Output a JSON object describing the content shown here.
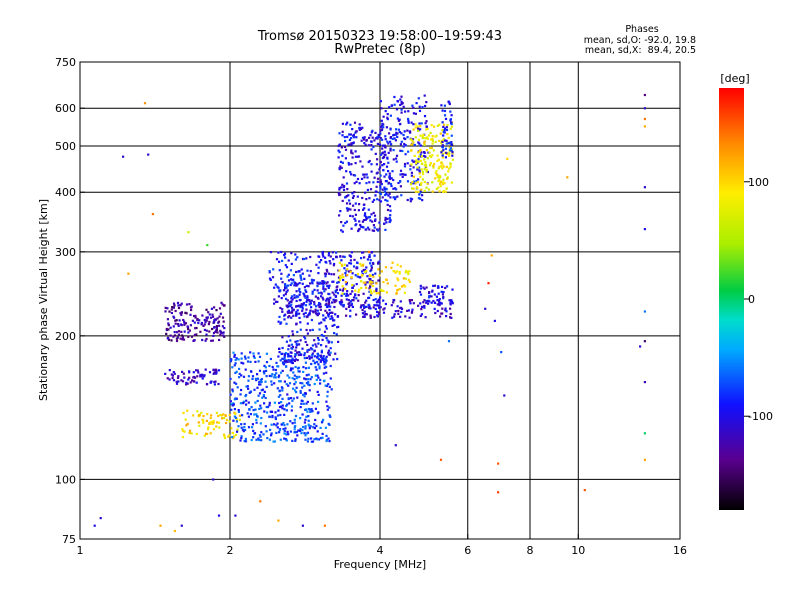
{
  "chart_data": {
    "type": "scatter",
    "title": "Tromsø 20150323 19:58:00–19:59:43",
    "subtitle": "RwPretec (8p)",
    "stats": {
      "heading": "Phases",
      "line_o": "mean, sd,O: -92.0, 19.8",
      "line_x": "mean, sd,X:  89.4, 20.5"
    },
    "xlabel": "Frequency [MHz]",
    "ylabel": "Stationary phase Virtual Height [km]",
    "x_scale": "log",
    "y_scale": "log",
    "xlim": [
      1,
      16
    ],
    "ylim": [
      75,
      750
    ],
    "x_ticks": [
      1,
      2,
      4,
      6,
      8,
      10,
      16
    ],
    "x_tick_labels": [
      "1",
      "2",
      "4",
      "6",
      "8",
      "10",
      "16"
    ],
    "y_ticks": [
      75,
      100,
      200,
      300,
      400,
      500,
      600,
      750
    ],
    "y_tick_labels": [
      "75",
      "100",
      "200",
      "300",
      "400",
      "500",
      "600",
      "750"
    ],
    "x_gridlines": [
      2,
      4,
      6,
      8,
      10
    ],
    "y_gridlines": [
      100,
      200,
      300,
      400,
      500,
      600
    ],
    "grid": true,
    "colorbar": {
      "label": "[deg]",
      "range": [
        -180,
        180
      ],
      "ticks": [
        100,
        0,
        -100
      ],
      "tick_labels": [
        "100",
        "0",
        "-100"
      ],
      "colormap": "rainbow"
    },
    "clusters": [
      {
        "x": [
          1.48,
          1.95
        ],
        "y": [
          195,
          235
        ],
        "phase": -130,
        "n": 170
      },
      {
        "x": [
          1.48,
          1.9
        ],
        "y": [
          158,
          170
        ],
        "phase": -115,
        "n": 70
      },
      {
        "x": [
          1.6,
          2.1
        ],
        "y": [
          122,
          140
        ],
        "phase": 95,
        "n": 80
      },
      {
        "x": [
          2.0,
          3.2
        ],
        "y": [
          120,
          185
        ],
        "phase": -75,
        "n": 520
      },
      {
        "x": [
          2.5,
          3.3
        ],
        "y": [
          175,
          260
        ],
        "phase": -95,
        "n": 260
      },
      {
        "x": [
          2.4,
          3.1
        ],
        "y": [
          230,
          300
        ],
        "phase": -90,
        "n": 120
      },
      {
        "x": [
          2.6,
          5.6
        ],
        "y": [
          218,
          238
        ],
        "phase": -110,
        "n": 180
      },
      {
        "x": [
          3.1,
          4.0
        ],
        "y": [
          230,
          300
        ],
        "phase": -100,
        "n": 180
      },
      {
        "x": [
          3.3,
          4.6
        ],
        "y": [
          245,
          285
        ],
        "phase": 95,
        "n": 100
      },
      {
        "x": [
          3.3,
          4.2
        ],
        "y": [
          330,
          560
        ],
        "phase": -100,
        "n": 300
      },
      {
        "x": [
          4.0,
          5.0
        ],
        "y": [
          380,
          640
        ],
        "phase": -95,
        "n": 220
      },
      {
        "x": [
          4.6,
          5.6
        ],
        "y": [
          400,
          560
        ],
        "phase": 85,
        "n": 190
      },
      {
        "x": [
          5.3,
          5.6
        ],
        "y": [
          470,
          620
        ],
        "phase": -90,
        "n": 50
      },
      {
        "x": [
          4.8,
          5.6
        ],
        "y": [
          232,
          255
        ],
        "phase": -100,
        "n": 50
      }
    ],
    "scattered_points": [
      {
        "x": 1.07,
        "y": 80,
        "phase": -100
      },
      {
        "x": 1.1,
        "y": 83,
        "phase": -110
      },
      {
        "x": 1.22,
        "y": 475,
        "phase": -110
      },
      {
        "x": 1.25,
        "y": 270,
        "phase": 120
      },
      {
        "x": 1.35,
        "y": 615,
        "phase": 130
      },
      {
        "x": 1.37,
        "y": 480,
        "phase": -110
      },
      {
        "x": 1.4,
        "y": 360,
        "phase": 140
      },
      {
        "x": 1.45,
        "y": 80,
        "phase": 120
      },
      {
        "x": 1.55,
        "y": 78,
        "phase": 110
      },
      {
        "x": 1.6,
        "y": 80,
        "phase": -110
      },
      {
        "x": 1.65,
        "y": 330,
        "phase": 60
      },
      {
        "x": 1.8,
        "y": 310,
        "phase": 20
      },
      {
        "x": 1.85,
        "y": 100,
        "phase": -110
      },
      {
        "x": 1.9,
        "y": 84,
        "phase": -100
      },
      {
        "x": 2.05,
        "y": 84,
        "phase": -110
      },
      {
        "x": 2.3,
        "y": 90,
        "phase": 140
      },
      {
        "x": 2.5,
        "y": 82,
        "phase": 120
      },
      {
        "x": 2.8,
        "y": 80,
        "phase": -110
      },
      {
        "x": 3.1,
        "y": 80,
        "phase": 140
      },
      {
        "x": 3.8,
        "y": 300,
        "phase": 140
      },
      {
        "x": 4.3,
        "y": 118,
        "phase": -110
      },
      {
        "x": 5.3,
        "y": 110,
        "phase": 150
      },
      {
        "x": 5.5,
        "y": 195,
        "phase": -60
      },
      {
        "x": 6.5,
        "y": 228,
        "phase": -110
      },
      {
        "x": 6.6,
        "y": 258,
        "phase": 170
      },
      {
        "x": 6.7,
        "y": 295,
        "phase": 120
      },
      {
        "x": 6.8,
        "y": 215,
        "phase": -100
      },
      {
        "x": 6.9,
        "y": 108,
        "phase": 150
      },
      {
        "x": 6.9,
        "y": 94,
        "phase": 160
      },
      {
        "x": 7.0,
        "y": 185,
        "phase": -70
      },
      {
        "x": 7.1,
        "y": 150,
        "phase": -110
      },
      {
        "x": 7.2,
        "y": 470,
        "phase": 100
      },
      {
        "x": 9.5,
        "y": 430,
        "phase": 120
      },
      {
        "x": 10.3,
        "y": 95,
        "phase": 150
      },
      {
        "x": 13.6,
        "y": 640,
        "phase": -140
      },
      {
        "x": 13.6,
        "y": 600,
        "phase": -110
      },
      {
        "x": 13.6,
        "y": 570,
        "phase": 140
      },
      {
        "x": 13.6,
        "y": 550,
        "phase": 120
      },
      {
        "x": 13.6,
        "y": 410,
        "phase": -110
      },
      {
        "x": 13.6,
        "y": 335,
        "phase": -100
      },
      {
        "x": 13.6,
        "y": 225,
        "phase": -60
      },
      {
        "x": 13.6,
        "y": 195,
        "phase": -150
      },
      {
        "x": 13.6,
        "y": 160,
        "phase": -120
      },
      {
        "x": 13.6,
        "y": 125,
        "phase": 0
      },
      {
        "x": 13.6,
        "y": 110,
        "phase": 120
      },
      {
        "x": 13.3,
        "y": 190,
        "phase": -110
      }
    ]
  }
}
